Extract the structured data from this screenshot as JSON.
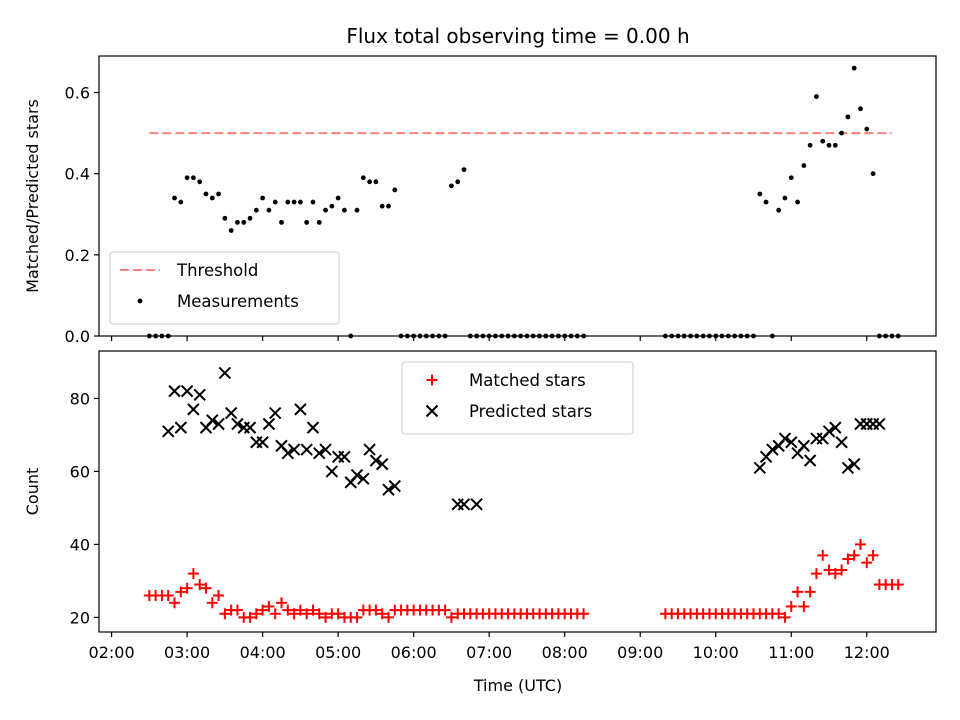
{
  "chart_data": {
    "type": "scatter",
    "title": "Flux total observing time = 0.00 h",
    "xlabel": "Time (UTC)",
    "x_unit": "hours of day (UTC)",
    "xlim": [
      "01:50",
      "12:55"
    ],
    "xticks": [
      "02:00",
      "03:00",
      "04:00",
      "05:00",
      "06:00",
      "07:00",
      "08:00",
      "09:00",
      "10:00",
      "11:00",
      "12:00"
    ],
    "panels": [
      {
        "ylabel": "Matched/Predicted stars",
        "ylim": [
          0,
          0.69
        ],
        "yticks": [
          "0.0",
          "0.2",
          "0.4",
          "0.6"
        ],
        "legend_position": "lower-left",
        "series": [
          {
            "name": "Threshold",
            "type": "line",
            "style": "dashed",
            "color": "#ff7f7f",
            "x": [
              "02:30",
              "12:20"
            ],
            "y": [
              0.5,
              0.5
            ]
          },
          {
            "name": "Measurements",
            "type": "scatter",
            "marker": "dot",
            "color": "#000000",
            "x": [
              "02:30",
              "02:35",
              "02:40",
              "02:45",
              "02:50",
              "02:55",
              "03:00",
              "03:05",
              "03:10",
              "03:15",
              "03:20",
              "03:25",
              "03:30",
              "03:35",
              "03:40",
              "03:45",
              "03:50",
              "03:55",
              "04:00",
              "04:05",
              "04:10",
              "04:15",
              "04:20",
              "04:25",
              "04:30",
              "04:35",
              "04:40",
              "04:45",
              "04:50",
              "04:55",
              "05:00",
              "05:05",
              "05:10",
              "05:15",
              "05:20",
              "05:25",
              "05:30",
              "05:35",
              "05:40",
              "05:45",
              "05:50",
              "05:55",
              "06:00",
              "06:05",
              "06:10",
              "06:15",
              "06:20",
              "06:25",
              "06:30",
              "06:35",
              "06:40",
              "06:45",
              "06:50",
              "06:55",
              "07:00",
              "07:05",
              "07:10",
              "07:15",
              "07:20",
              "07:25",
              "07:30",
              "07:35",
              "07:40",
              "07:45",
              "07:50",
              "07:55",
              "08:00",
              "08:05",
              "08:10",
              "08:15",
              "09:20",
              "09:25",
              "09:30",
              "09:35",
              "09:40",
              "09:45",
              "09:50",
              "09:55",
              "10:00",
              "10:05",
              "10:10",
              "10:15",
              "10:20",
              "10:25",
              "10:30",
              "10:35",
              "10:40",
              "10:45",
              "10:50",
              "10:55",
              "11:00",
              "11:05",
              "11:10",
              "11:15",
              "11:20",
              "11:25",
              "11:30",
              "11:35",
              "11:40",
              "11:45",
              "11:50",
              "11:55",
              "12:00",
              "12:05",
              "12:10",
              "12:15",
              "12:20",
              "12:25"
            ],
            "y": [
              0,
              0,
              0,
              0,
              0.34,
              0.33,
              0.39,
              0.39,
              0.38,
              0.35,
              0.34,
              0.35,
              0.29,
              0.26,
              0.28,
              0.28,
              0.29,
              0.31,
              0.34,
              0.31,
              0.33,
              0.28,
              0.33,
              0.33,
              0.33,
              0.28,
              0.33,
              0.28,
              0.31,
              0.32,
              0.34,
              0.31,
              0,
              0.31,
              0.39,
              0.38,
              0.38,
              0.32,
              0.32,
              0.36,
              0,
              0,
              0,
              0,
              0,
              0,
              0,
              0,
              0.37,
              0.38,
              0.41,
              0,
              0,
              0,
              0,
              0,
              0,
              0,
              0,
              0,
              0,
              0,
              0,
              0,
              0,
              0,
              0,
              0,
              0,
              0,
              0,
              0,
              0,
              0,
              0,
              0,
              0,
              0,
              0,
              0,
              0,
              0,
              0,
              0,
              0,
              0.35,
              0.33,
              0,
              0.31,
              0.34,
              0.39,
              0.33,
              0.42,
              0.47,
              0.59,
              0.48,
              0.47,
              0.47,
              0.5,
              0.54,
              0.66,
              0.56,
              0.51,
              0.4,
              0,
              0,
              0,
              0
            ],
            "x_start": "02:30",
            "x_step_minutes": 5
          }
        ]
      },
      {
        "ylabel": "Count",
        "ylim": [
          16,
          93
        ],
        "yticks": [
          "20",
          "40",
          "60",
          "80"
        ],
        "legend_position": "upper-center",
        "series": [
          {
            "name": "Matched stars",
            "type": "scatter",
            "marker": "plus",
            "color": "#ff0000",
            "x": [
              "02:30",
              "02:35",
              "02:40",
              "02:45",
              "02:50",
              "02:55",
              "03:00",
              "03:05",
              "03:10",
              "03:15",
              "03:20",
              "03:25",
              "03:30",
              "03:35",
              "03:40",
              "03:45",
              "03:50",
              "03:55",
              "04:00",
              "04:05",
              "04:10",
              "04:15",
              "04:20",
              "04:25",
              "04:30",
              "04:35",
              "04:40",
              "04:45",
              "04:50",
              "04:55",
              "05:00",
              "05:05",
              "05:10",
              "05:15",
              "05:20",
              "05:25",
              "05:30",
              "05:35",
              "05:40",
              "05:45",
              "05:50",
              "05:55",
              "06:00",
              "06:05",
              "06:10",
              "06:15",
              "06:20",
              "06:25",
              "06:30",
              "06:35",
              "06:40",
              "06:45",
              "06:50",
              "06:55",
              "07:00",
              "07:05",
              "07:10",
              "07:15",
              "07:20",
              "07:25",
              "07:30",
              "07:35",
              "07:40",
              "07:45",
              "07:50",
              "07:55",
              "08:00",
              "08:05",
              "08:10",
              "08:15",
              "09:20",
              "09:25",
              "09:30",
              "09:35",
              "09:40",
              "09:45",
              "09:50",
              "09:55",
              "10:00",
              "10:05",
              "10:10",
              "10:15",
              "10:20",
              "10:25",
              "10:30",
              "10:35",
              "10:40",
              "10:45",
              "10:50",
              "10:55",
              "11:00",
              "11:05",
              "11:10",
              "11:15",
              "11:20",
              "11:25",
              "11:30",
              "11:35",
              "11:40",
              "11:45",
              "11:50",
              "11:55",
              "12:00",
              "12:05",
              "12:10",
              "12:15",
              "12:20",
              "12:25"
            ],
            "y": [
              26,
              26,
              26,
              26,
              24,
              27,
              28,
              32,
              29,
              28,
              24,
              26,
              21,
              22,
              22,
              20,
              20,
              21,
              22,
              23,
              21,
              24,
              22,
              21,
              22,
              21,
              22,
              21,
              20,
              21,
              21,
              20,
              20,
              20,
              22,
              22,
              22,
              21,
              20,
              22,
              22,
              22,
              22,
              22,
              22,
              22,
              22,
              22,
              20,
              21,
              21,
              21,
              21,
              21,
              21,
              21,
              21,
              21,
              21,
              21,
              21,
              21,
              21,
              21,
              21,
              21,
              21,
              21,
              21,
              21,
              21,
              21,
              21,
              21,
              21,
              21,
              21,
              21,
              21,
              21,
              21,
              21,
              21,
              21,
              21,
              21,
              21,
              21,
              21,
              20,
              23,
              27,
              23,
              27,
              32,
              37,
              33,
              32,
              33,
              36,
              37,
              40,
              35,
              37,
              29,
              29,
              29,
              29
            ]
          },
          {
            "name": "Predicted stars",
            "type": "scatter",
            "marker": "x",
            "color": "#000000",
            "x": [
              "02:45",
              "02:50",
              "02:55",
              "03:00",
              "03:05",
              "03:10",
              "03:15",
              "03:20",
              "03:25",
              "03:30",
              "03:35",
              "03:40",
              "03:45",
              "03:50",
              "03:55",
              "04:00",
              "04:05",
              "04:10",
              "04:15",
              "04:20",
              "04:25",
              "04:30",
              "04:35",
              "04:40",
              "04:45",
              "04:50",
              "04:55",
              "05:00",
              "05:05",
              "05:10",
              "05:15",
              "05:20",
              "05:25",
              "05:30",
              "05:35",
              "05:40",
              "05:45",
              "06:35",
              "06:40",
              "06:50",
              "10:35",
              "10:40",
              "10:45",
              "10:50",
              "10:55",
              "11:00",
              "11:05",
              "11:10",
              "11:15",
              "11:20",
              "11:25",
              "11:30",
              "11:35",
              "11:40",
              "11:45",
              "11:50",
              "11:55",
              "12:00",
              "12:05",
              "12:10"
            ],
            "y": [
              71,
              82,
              72,
              82,
              77,
              81,
              72,
              74,
              73,
              87,
              76,
              73,
              72,
              72,
              68,
              68,
              73,
              76,
              67,
              65,
              66,
              77,
              66,
              72,
              65,
              66,
              60,
              64,
              64,
              57,
              59,
              58,
              66,
              63,
              62,
              55,
              56,
              51,
              51,
              51,
              61,
              64,
              66,
              67,
              69,
              68,
              65,
              67,
              63,
              69,
              69,
              71,
              72,
              68,
              61,
              62,
              73,
              73,
              73,
              73
            ]
          }
        ]
      }
    ]
  }
}
